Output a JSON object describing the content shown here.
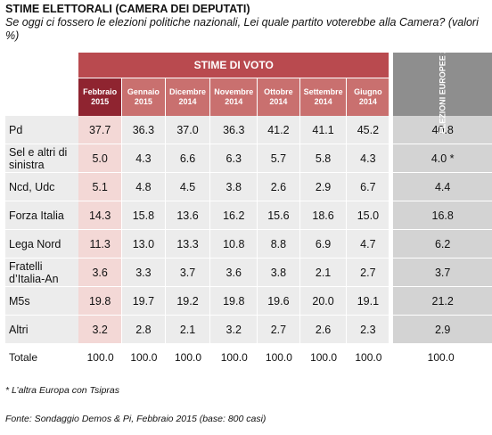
{
  "title": "STIME ELETTORALI (CAMERA DEI DEPUTATI)",
  "question": "Se oggi ci fossero le elezioni politiche nazionali, Lei quale partito voterebbe alla Camera? (valori %)",
  "header_group": "STIME DI VOTO",
  "header_last": "ELEZIONI EUROPEE 2014",
  "note": "* L’altra Europa con Tsipras",
  "source": "Fonte: Sondaggio Demos & Pi, Febbraio 2015 (base: 800 casi)",
  "chart_data": {
    "type": "table",
    "columns": [
      "Febbraio 2015",
      "Gennaio 2015",
      "Dicembre 2014",
      "Novembre 2014",
      "Ottobre 2014",
      "Settembre 2014",
      "Giugno 2014",
      "ELEZIONI EUROPEE 2014"
    ],
    "column_lines": [
      [
        "Febbraio",
        "2015"
      ],
      [
        "Gennaio",
        "2015"
      ],
      [
        "Dicembre",
        "2014"
      ],
      [
        "Novembre",
        "2014"
      ],
      [
        "Ottobre",
        "2014"
      ],
      [
        "Settembre",
        "2014"
      ],
      [
        "Giugno",
        "2014"
      ]
    ],
    "rows": [
      {
        "label": "Pd",
        "values": [
          "37.7",
          "36.3",
          "37.0",
          "36.3",
          "41.2",
          "41.1",
          "45.2",
          "40.8"
        ]
      },
      {
        "label": "Sel e altri di sinistra",
        "values": [
          "5.0",
          "4.3",
          "6.6",
          "6.3",
          "5.7",
          "5.8",
          "4.3",
          "4.0 *"
        ]
      },
      {
        "label": "Ncd, Udc",
        "values": [
          "5.1",
          "4.8",
          "4.5",
          "3.8",
          "2.6",
          "2.9",
          "6.7",
          "4.4"
        ]
      },
      {
        "label": "Forza Italia",
        "values": [
          "14.3",
          "15.8",
          "13.6",
          "16.2",
          "15.6",
          "18.6",
          "15.0",
          "16.8"
        ]
      },
      {
        "label": "Lega Nord",
        "values": [
          "11.3",
          "13.0",
          "13.3",
          "10.8",
          "8.8",
          "6.9",
          "4.7",
          "6.2"
        ]
      },
      {
        "label": "Fratelli d’Italia-An",
        "values": [
          "3.6",
          "3.3",
          "3.7",
          "3.6",
          "3.8",
          "2.1",
          "2.7",
          "3.7"
        ]
      },
      {
        "label": "M5s",
        "values": [
          "19.8",
          "19.7",
          "19.2",
          "19.8",
          "19.6",
          "20.0",
          "19.1",
          "21.2"
        ]
      },
      {
        "label": "Altri",
        "values": [
          "3.2",
          "2.8",
          "2.1",
          "3.2",
          "2.7",
          "2.6",
          "2.3",
          "2.9"
        ]
      }
    ],
    "total": {
      "label": "Totale",
      "values": [
        "100.0",
        "100.0",
        "100.0",
        "100.0",
        "100.0",
        "100.0",
        "100.0",
        "100.0"
      ]
    },
    "colors": {
      "group_header": "#b94a4f",
      "first_month": "#8f2430",
      "month": "#c9706f",
      "first_col_cells": "#f3d8d6",
      "cells": "#ececec",
      "election_header": "#8e8e8e",
      "election_cells": "#d3d3d3"
    }
  }
}
